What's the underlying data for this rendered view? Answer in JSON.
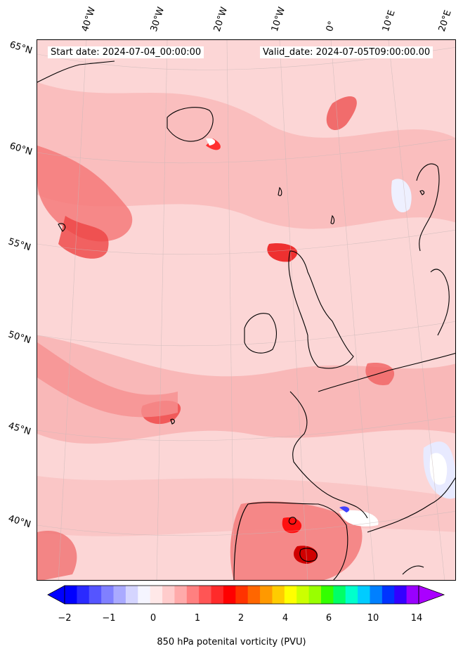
{
  "header": {
    "start_date": "Start date: 2024-07-04_00:00:00",
    "valid_date": "Valid_date: 2024-07-05T09:00:00.00"
  },
  "lat_labels": [
    "65°N",
    "60°N",
    "55°N",
    "50°N",
    "45°N",
    "40°N"
  ],
  "lon_labels": [
    "40°W",
    "30°W",
    "20°W",
    "10°W",
    "0°",
    "10°E",
    "20°E"
  ],
  "colorbar": {
    "label": "850 hPa potenital vorticity (PVU)",
    "ticks": [
      "−2",
      "−1",
      "0",
      "1",
      "2",
      "4",
      "6",
      "10",
      "14"
    ],
    "colors": [
      "#0000ff",
      "#2a2aff",
      "#5555ff",
      "#8080ff",
      "#aaaaff",
      "#d5d5ff",
      "#f5f5ff",
      "#ffe8e8",
      "#ffcccc",
      "#ffaaaa",
      "#ff8080",
      "#ff5555",
      "#ff2a2a",
      "#ff0000",
      "#ff3300",
      "#ff6600",
      "#ff9900",
      "#ffcc00",
      "#ffff00",
      "#ccff00",
      "#99ff00",
      "#33ff00",
      "#00ff66",
      "#00ffcc",
      "#00ccff",
      "#0080ff",
      "#0033ff",
      "#3300ff",
      "#9900ff"
    ]
  },
  "colors": {
    "background_field": "#fcdcdc",
    "high_pv": "#ff3030",
    "negative_pv": "#4040ff"
  }
}
